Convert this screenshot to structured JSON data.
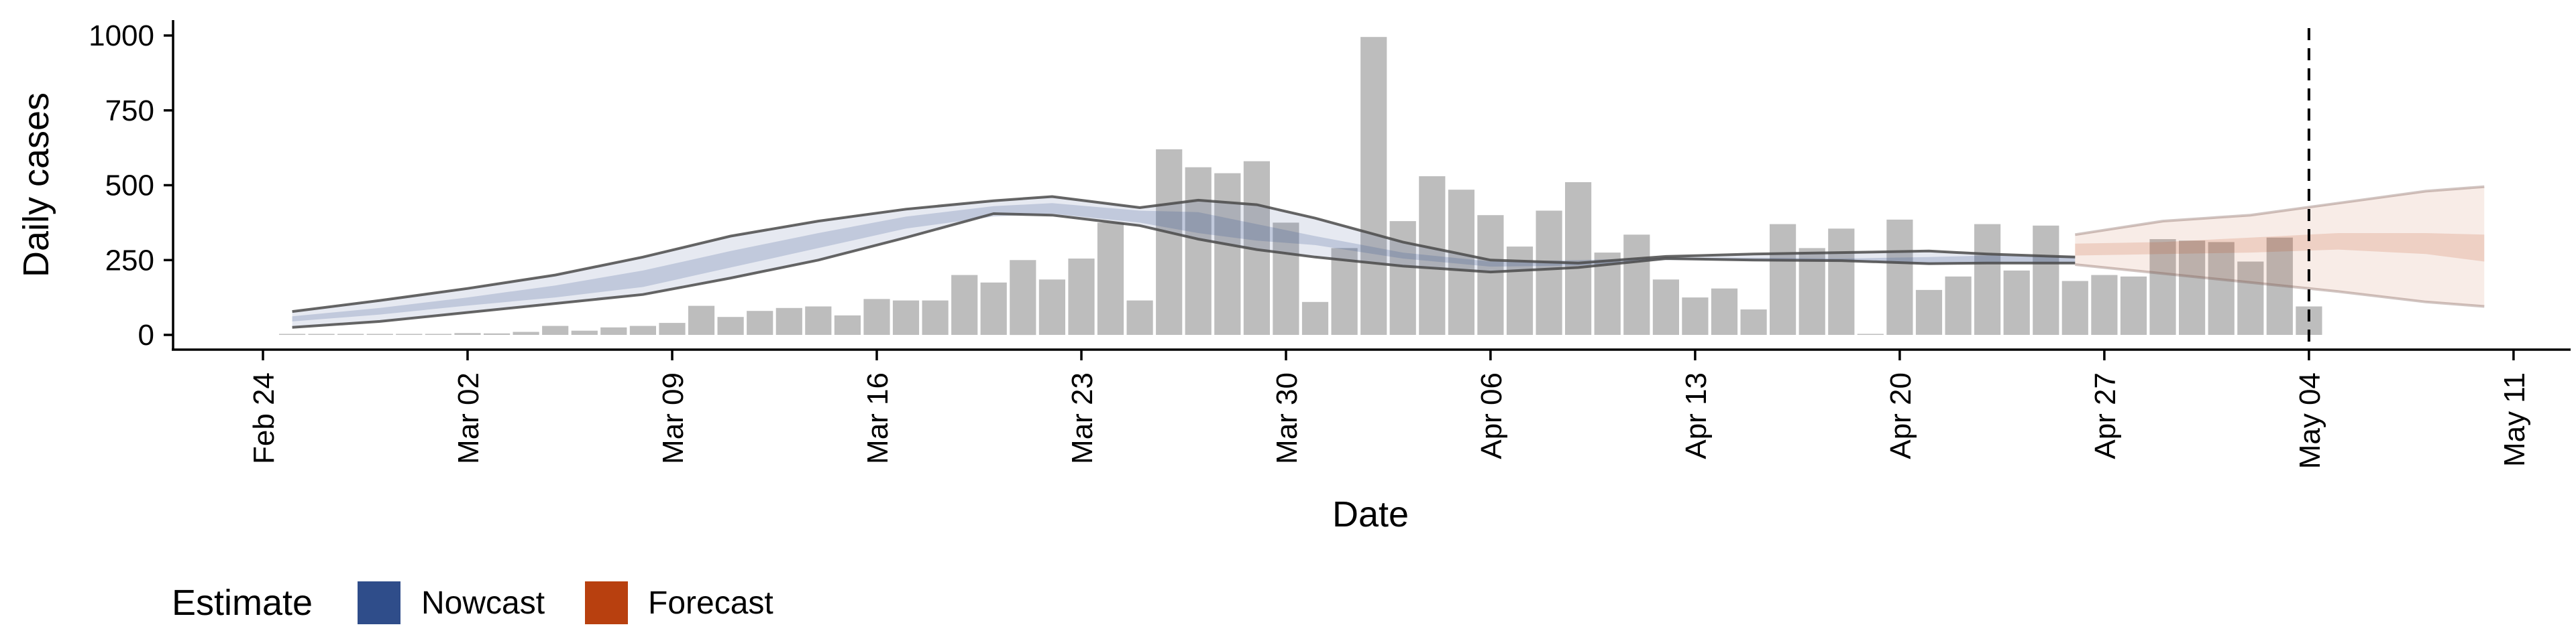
{
  "chart_data": {
    "type": "bar",
    "xlabel": "Date",
    "ylabel": "Daily cases",
    "ylim": [
      0,
      1000
    ],
    "yticks": [
      0,
      250,
      500,
      750,
      1000
    ],
    "ytick_labels": [
      "0",
      "250",
      "500",
      "750",
      "1000"
    ],
    "xaxis_start": "2020-02-24",
    "xticks": [
      "Feb 24",
      "Mar 02",
      "Mar 09",
      "Mar 16",
      "Mar 23",
      "Mar 30",
      "Apr 06",
      "Apr 13",
      "Apr 20",
      "Apr 27",
      "May 04",
      "May 11"
    ],
    "grid": false,
    "bar_color": "#bdbdbd",
    "bars": [
      [
        "2020-02-25",
        0
      ],
      [
        "2020-02-26",
        0
      ],
      [
        "2020-02-27",
        0
      ],
      [
        "2020-02-28",
        1
      ],
      [
        "2020-02-29",
        2
      ],
      [
        "2020-03-01",
        3
      ],
      [
        "2020-03-02",
        6
      ],
      [
        "2020-03-03",
        5
      ],
      [
        "2020-03-04",
        10
      ],
      [
        "2020-03-05",
        30
      ],
      [
        "2020-03-06",
        14
      ],
      [
        "2020-03-07",
        25
      ],
      [
        "2020-03-08",
        30
      ],
      [
        "2020-03-09",
        40
      ],
      [
        "2020-03-10",
        97
      ],
      [
        "2020-03-11",
        60
      ],
      [
        "2020-03-12",
        80
      ],
      [
        "2020-03-13",
        90
      ],
      [
        "2020-03-14",
        95
      ],
      [
        "2020-03-15",
        65
      ],
      [
        "2020-03-16",
        120
      ],
      [
        "2020-03-17",
        115
      ],
      [
        "2020-03-18",
        115
      ],
      [
        "2020-03-19",
        200
      ],
      [
        "2020-03-20",
        175
      ],
      [
        "2020-03-21",
        250
      ],
      [
        "2020-03-22",
        185
      ],
      [
        "2020-03-23",
        255
      ],
      [
        "2020-03-24",
        375
      ],
      [
        "2020-03-25",
        115
      ],
      [
        "2020-03-26",
        620
      ],
      [
        "2020-03-27",
        560
      ],
      [
        "2020-03-28",
        540
      ],
      [
        "2020-03-29",
        580
      ],
      [
        "2020-03-30",
        375
      ],
      [
        "2020-03-31",
        110
      ],
      [
        "2020-04-01",
        290
      ],
      [
        "2020-04-02",
        995
      ],
      [
        "2020-04-03",
        380
      ],
      [
        "2020-04-04",
        530
      ],
      [
        "2020-04-05",
        485
      ],
      [
        "2020-04-06",
        400
      ],
      [
        "2020-04-07",
        295
      ],
      [
        "2020-04-08",
        415
      ],
      [
        "2020-04-09",
        510
      ],
      [
        "2020-04-10",
        275
      ],
      [
        "2020-04-11",
        335
      ],
      [
        "2020-04-12",
        185
      ],
      [
        "2020-04-13",
        125
      ],
      [
        "2020-04-14",
        155
      ],
      [
        "2020-04-15",
        85
      ],
      [
        "2020-04-16",
        370
      ],
      [
        "2020-04-17",
        290
      ],
      [
        "2020-04-18",
        355
      ],
      [
        "2020-04-19",
        0
      ],
      [
        "2020-04-20",
        385
      ],
      [
        "2020-04-21",
        150
      ],
      [
        "2020-04-22",
        195
      ],
      [
        "2020-04-23",
        370
      ],
      [
        "2020-04-24",
        215
      ],
      [
        "2020-04-25",
        365
      ],
      [
        "2020-04-26",
        180
      ],
      [
        "2020-04-27",
        200
      ],
      [
        "2020-04-28",
        195
      ],
      [
        "2020-04-29",
        320
      ],
      [
        "2020-04-30",
        315
      ],
      [
        "2020-05-01",
        310
      ],
      [
        "2020-05-02",
        245
      ],
      [
        "2020-05-03",
        325
      ],
      [
        "2020-05-04",
        95
      ]
    ],
    "nowcast": {
      "color": "#2f4d8a",
      "dates": [
        "2020-02-25",
        "2020-02-28",
        "2020-03-02",
        "2020-03-05",
        "2020-03-08",
        "2020-03-11",
        "2020-03-14",
        "2020-03-17",
        "2020-03-20",
        "2020-03-22",
        "2020-03-25",
        "2020-03-27",
        "2020-03-29",
        "2020-03-31",
        "2020-04-03",
        "2020-04-06",
        "2020-04-09",
        "2020-04-12",
        "2020-04-15",
        "2020-04-18",
        "2020-04-21",
        "2020-04-23",
        "2020-04-26"
      ],
      "upper90": [
        78,
        115,
        155,
        200,
        260,
        330,
        380,
        420,
        448,
        462,
        425,
        450,
        435,
        390,
        310,
        250,
        240,
        262,
        270,
        275,
        280,
        270,
        260
      ],
      "upper50": [
        62,
        90,
        125,
        165,
        215,
        280,
        340,
        395,
        430,
        440,
        415,
        410,
        370,
        330,
        275,
        245,
        250,
        258,
        258,
        255,
        260,
        265,
        262
      ],
      "lower50": [
        45,
        68,
        98,
        125,
        160,
        225,
        290,
        355,
        395,
        405,
        375,
        340,
        315,
        300,
        255,
        228,
        232,
        250,
        248,
        248,
        235,
        240,
        240
      ],
      "lower90": [
        25,
        45,
        75,
        105,
        135,
        190,
        250,
        325,
        405,
        400,
        365,
        320,
        285,
        260,
        230,
        210,
        225,
        255,
        250,
        248,
        238,
        240,
        240
      ]
    },
    "forecast": {
      "color": "#b8400f",
      "dates": [
        "2020-04-26",
        "2020-04-29",
        "2020-05-02",
        "2020-05-05",
        "2020-05-08",
        "2020-05-10"
      ],
      "upper90": [
        335,
        380,
        400,
        440,
        480,
        495
      ],
      "upper50": [
        305,
        310,
        325,
        340,
        340,
        335
      ],
      "median": [
        285,
        290,
        300,
        315,
        310,
        305
      ],
      "lower50": [
        265,
        270,
        275,
        285,
        270,
        245
      ],
      "lower90": [
        235,
        205,
        175,
        145,
        110,
        95
      ]
    },
    "vline_date": "2020-05-04",
    "legend": {
      "title": "Estimate",
      "position": "bottom-left",
      "items": [
        {
          "label": "Nowcast",
          "color": "#2f4d8a"
        },
        {
          "label": "Forecast",
          "color": "#b8400f"
        }
      ]
    }
  }
}
